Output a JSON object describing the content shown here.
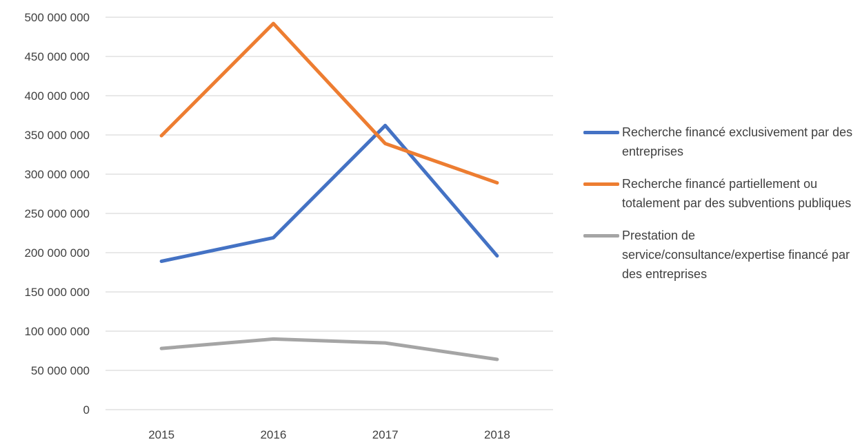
{
  "chart_data": {
    "type": "line",
    "title": "",
    "xlabel": "",
    "ylabel": "",
    "categories": [
      "2015",
      "2016",
      "2017",
      "2018"
    ],
    "ylim": [
      0,
      500000000
    ],
    "y_ticks": [
      0,
      50000000,
      100000000,
      150000000,
      200000000,
      250000000,
      300000000,
      350000000,
      400000000,
      450000000,
      500000000
    ],
    "y_tick_labels": [
      "0",
      "50 000 000",
      "100 000 000",
      "150 000 000",
      "200 000 000",
      "250 000 000",
      "300 000 000",
      "350 000 000",
      "400 000 000",
      "450 000 000",
      "500 000 000"
    ],
    "grid": true,
    "legend_position": "right",
    "series": [
      {
        "name": "Recherche financé exclusivement par des entreprises",
        "color": "#4472c4",
        "values": [
          189000000,
          219000000,
          362000000,
          196000000
        ]
      },
      {
        "name": "Recherche financé partiellement ou totalement par des subventions publiques",
        "color": "#ed7d31",
        "values": [
          349000000,
          492000000,
          339000000,
          289000000
        ]
      },
      {
        "name": "Prestation de service/consultance/expertise financé par des entreprises",
        "color": "#a5a5a5",
        "values": [
          78000000,
          90000000,
          85000000,
          64000000
        ]
      }
    ]
  },
  "legend": {
    "items": [
      {
        "label": "Recherche financé exclusivement par des entreprises",
        "color": "#4472c4"
      },
      {
        "label": "Recherche financé partiellement ou totalement par des subventions publiques",
        "color": "#ed7d31"
      },
      {
        "label": "Prestation de service/consultance/expertise financé par des entreprises",
        "color": "#a5a5a5"
      }
    ]
  }
}
